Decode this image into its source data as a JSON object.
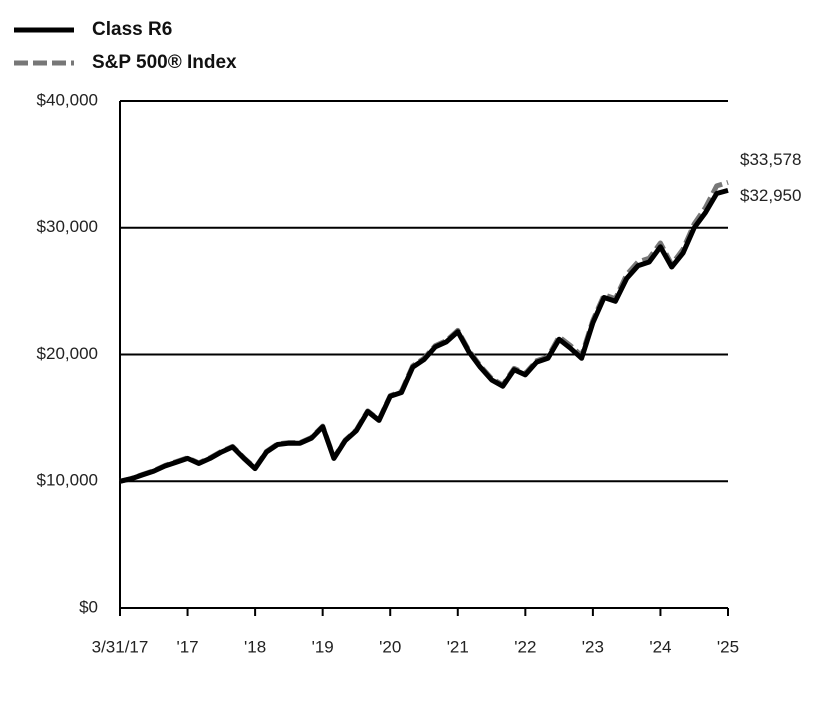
{
  "chart_data": {
    "type": "line",
    "categories": [
      "3/31/17",
      null,
      null,
      null,
      null,
      null,
      "'17",
      null,
      null,
      null,
      null,
      null,
      "'18",
      null,
      null,
      null,
      null,
      null,
      "'19",
      null,
      null,
      null,
      null,
      null,
      "'20",
      null,
      null,
      null,
      null,
      null,
      "'21",
      null,
      null,
      null,
      null,
      null,
      "'22",
      null,
      null,
      null,
      null,
      null,
      "'23",
      null,
      null,
      null,
      null,
      null,
      "'24",
      null,
      null,
      null,
      null,
      null,
      "'25"
    ],
    "series": [
      {
        "name": "Class R6",
        "color": "#000000",
        "dashed": false,
        "values": [
          10000,
          10200,
          10500,
          10800,
          11200,
          11500,
          11800,
          11400,
          11800,
          12300,
          12700,
          11800,
          11000,
          12300,
          12900,
          13000,
          13000,
          13400,
          14300,
          11800,
          13200,
          14000,
          15500,
          14800,
          16700,
          17000,
          19000,
          19600,
          20600,
          21000,
          21800,
          20200,
          19000,
          18000,
          17500,
          18800,
          18400,
          19400,
          19700,
          21200,
          20500,
          19700,
          22500,
          24500,
          24200,
          26000,
          27000,
          27300,
          28500,
          26900,
          28000,
          30000,
          31200,
          32700,
          32950
        ],
        "value_labels": [
          null,
          null,
          null,
          null,
          null,
          null,
          null,
          null,
          null,
          null,
          null,
          null,
          null,
          null,
          null,
          null,
          null,
          null,
          null,
          null,
          null,
          null,
          null,
          null,
          null,
          null,
          null,
          null,
          null,
          null,
          null,
          null,
          null,
          null,
          null,
          null,
          null,
          null,
          null,
          null,
          null,
          null,
          null,
          null,
          null,
          null,
          null,
          null,
          null,
          null,
          null,
          null,
          null,
          null,
          "$32,950"
        ]
      },
      {
        "name": "S&P 500® Index",
        "color": "#777777",
        "dashed": true,
        "values": [
          10000,
          10220,
          10530,
          10830,
          11240,
          11550,
          11850,
          11450,
          11850,
          12350,
          12750,
          11850,
          11050,
          12350,
          12950,
          13050,
          13050,
          13450,
          14350,
          11850,
          13250,
          14050,
          15550,
          14850,
          16750,
          17100,
          19100,
          19700,
          20700,
          21100,
          21900,
          20300,
          19100,
          18100,
          17600,
          18900,
          18500,
          19500,
          19800,
          21400,
          20700,
          19900,
          22700,
          24700,
          24400,
          26300,
          27300,
          27600,
          28800,
          27100,
          28300,
          30300,
          31600,
          33300,
          33578
        ],
        "value_labels": [
          null,
          null,
          null,
          null,
          null,
          null,
          null,
          null,
          null,
          null,
          null,
          null,
          null,
          null,
          null,
          null,
          null,
          null,
          null,
          null,
          null,
          null,
          null,
          null,
          null,
          null,
          null,
          null,
          null,
          null,
          null,
          null,
          null,
          null,
          null,
          null,
          null,
          null,
          null,
          null,
          null,
          null,
          null,
          null,
          null,
          null,
          null,
          null,
          null,
          null,
          null,
          null,
          null,
          null,
          "$33,578"
        ]
      }
    ],
    "ylim": [
      0,
      40000
    ],
    "yticks": [
      {
        "value": 0,
        "label": "$0"
      },
      {
        "value": 10000,
        "label": "$10,000"
      },
      {
        "value": 20000,
        "label": "$20,000"
      },
      {
        "value": 30000,
        "label": "$30,000"
      },
      {
        "value": 40000,
        "label": "$40,000"
      }
    ],
    "grid": true,
    "legend": "top-left"
  }
}
